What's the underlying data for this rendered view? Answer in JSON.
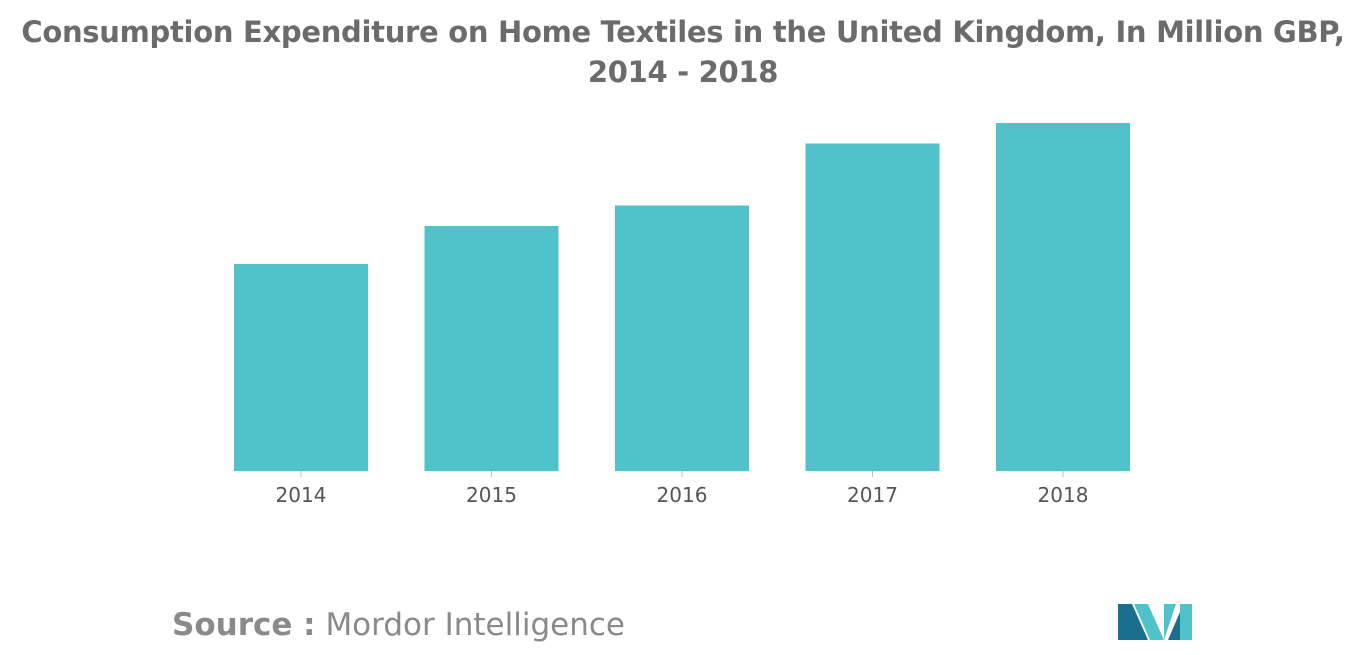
{
  "title": "Consumption Expenditure on Home Textiles in the United Kingdom, In Million GBP, 2014 - 2018",
  "source": {
    "label": "Source :",
    "name": "Mordor Intelligence"
  },
  "logo": {
    "icon": "mordor-intelligence-logo",
    "colors": [
      "#1a6e8e",
      "#4fc3c9"
    ]
  },
  "chart_data": {
    "type": "bar",
    "title": "Consumption Expenditure on Home Textiles in the United Kingdom, In Million GBP, 2014 - 2018",
    "xlabel": "",
    "ylabel": "",
    "categories": [
      "2014",
      "2015",
      "2016",
      "2017",
      "2018"
    ],
    "values": [
      59.5,
      70.4,
      76.3,
      94.1,
      100
    ],
    "ylim": [
      0,
      100
    ],
    "grid": false,
    "legend": "none",
    "bar_color": "#4fc3c9"
  }
}
